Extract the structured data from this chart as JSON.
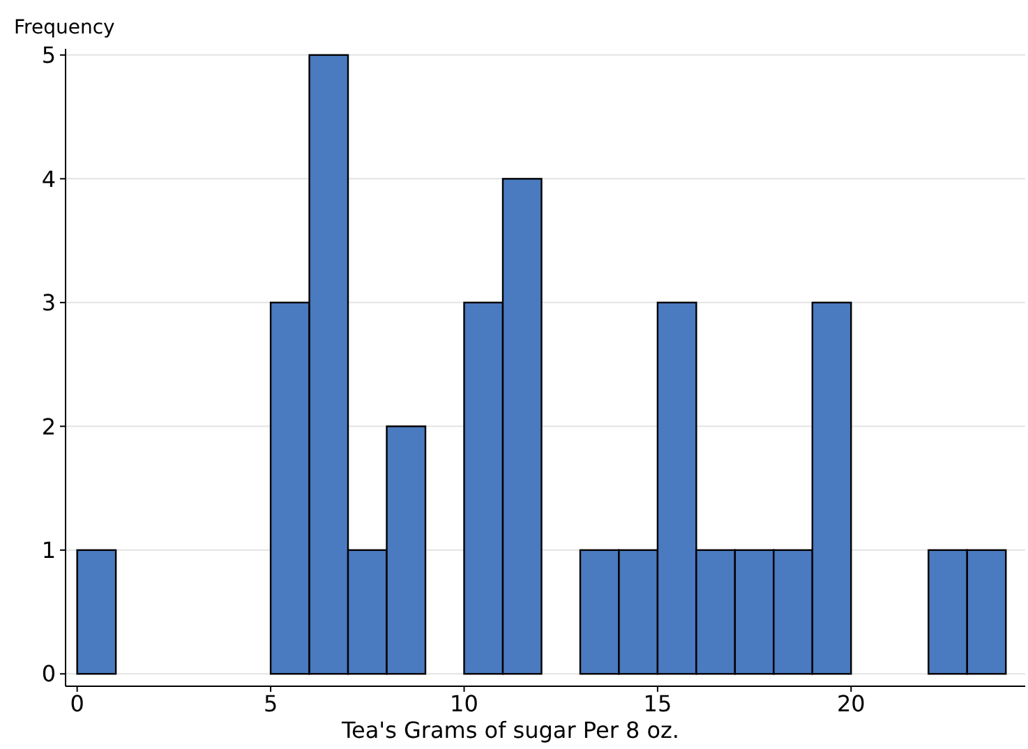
{
  "chart_data": {
    "type": "histogram",
    "xlabel": "Tea's Grams of sugar Per 8 oz.",
    "ylabel": "Frequency",
    "bins": [
      0,
      1,
      2,
      3,
      4,
      5,
      6,
      7,
      8,
      9,
      10,
      11,
      12,
      13,
      14,
      15,
      16,
      17,
      18,
      19,
      20,
      21,
      22,
      23,
      24
    ],
    "values": [
      1,
      0,
      0,
      0,
      0,
      3,
      5,
      1,
      2,
      0,
      3,
      4,
      0,
      1,
      1,
      3,
      1,
      1,
      1,
      3,
      0,
      0,
      1,
      1
    ],
    "color": "#4a7abf",
    "xlim": [
      -0.3,
      24.5
    ],
    "ylim": [
      -0.1,
      5.05
    ],
    "xticks": [
      0,
      5,
      10,
      15,
      20
    ],
    "yticks": [
      0,
      1,
      2,
      3,
      4,
      5
    ],
    "grid": "y"
  }
}
